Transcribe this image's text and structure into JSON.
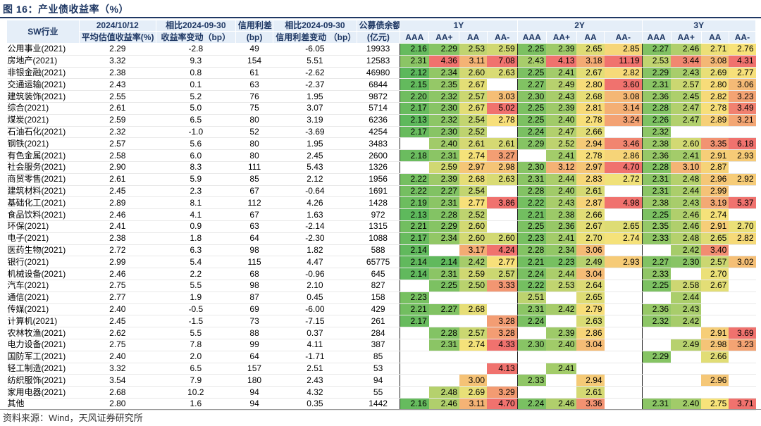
{
  "title": "图 16：产业债收益率（%）",
  "source": "资料来源：Wind，天风证券研究所",
  "colors": {
    "header_bg": "#e5eef8",
    "header_text": "#1f3864",
    "low": "#5cb85c",
    "mid": "#f7e37a",
    "high": "#f0726e"
  },
  "header": {
    "industry": "SW行业",
    "date": "2024/10/12",
    "avg_yield": "平均估值收益率(%)",
    "chg_label_top": "相比2024-09-30",
    "chg_label_bottom": "收益率变动（bp）",
    "spread_top": "信用利差",
    "spread_bottom": "(bp)",
    "spread_chg_top": "相比2024-09-30",
    "spread_chg_bottom": "信用利差变动 （bp）",
    "balance_top": "公募债余额",
    "balance_bottom": "(亿元)",
    "terms": [
      "1Y",
      "2Y",
      "3Y"
    ],
    "ratings": [
      "AAA",
      "AA+",
      "AA",
      "AA-"
    ]
  },
  "rows": [
    {
      "name": "公用事业(2021)",
      "yield": "2.29",
      "chg": "-2.8",
      "spread": "49",
      "spread_chg": "-6.05",
      "balance": "19933",
      "y1": [
        "2.16",
        "2.29",
        "2.53",
        "2.59"
      ],
      "y2": [
        "2.25",
        "2.39",
        "2.65",
        "2.85"
      ],
      "y3": [
        "2.27",
        "2.46",
        "2.71",
        "2.76"
      ]
    },
    {
      "name": "房地产(2021)",
      "yield": "3.32",
      "chg": "9.3",
      "spread": "154",
      "spread_chg": "5.51",
      "balance": "12583",
      "y1": [
        "2.31",
        "4.36",
        "3.11",
        "7.08"
      ],
      "y2": [
        "2.43",
        "4.13",
        "3.18",
        "11.19"
      ],
      "y3": [
        "2.53",
        "3.44",
        "3.08",
        "4.31"
      ]
    },
    {
      "name": "非银金融(2021)",
      "yield": "2.38",
      "chg": "0.8",
      "spread": "61",
      "spread_chg": "-2.62",
      "balance": "46980",
      "y1": [
        "2.12",
        "2.34",
        "2.60",
        "2.63"
      ],
      "y2": [
        "2.25",
        "2.41",
        "2.67",
        "2.82"
      ],
      "y3": [
        "2.29",
        "2.43",
        "2.69",
        "2.77"
      ]
    },
    {
      "name": "交通运输(2021)",
      "yield": "2.43",
      "chg": "0.1",
      "spread": "63",
      "spread_chg": "-2.37",
      "balance": "6844",
      "y1": [
        "2.15",
        "2.35",
        "2.67",
        ""
      ],
      "y2": [
        "2.27",
        "2.49",
        "2.80",
        "3.60"
      ],
      "y3": [
        "2.31",
        "2.57",
        "2.80",
        "3.06"
      ]
    },
    {
      "name": "建筑装饰(2021)",
      "yield": "2.55",
      "chg": "5.2",
      "spread": "76",
      "spread_chg": "1.95",
      "balance": "9872",
      "y1": [
        "2.20",
        "2.32",
        "2.57",
        "3.03"
      ],
      "y2": [
        "2.30",
        "2.43",
        "2.68",
        "3.08"
      ],
      "y3": [
        "2.36",
        "2.45",
        "2.82",
        "3.23"
      ]
    },
    {
      "name": "综合(2021)",
      "yield": "2.61",
      "chg": "5.0",
      "spread": "75",
      "spread_chg": "3.07",
      "balance": "5714",
      "y1": [
        "2.17",
        "2.30",
        "2.67",
        "5.02"
      ],
      "y2": [
        "2.25",
        "2.39",
        "2.81",
        "3.14"
      ],
      "y3": [
        "2.28",
        "2.47",
        "2.78",
        "3.49"
      ]
    },
    {
      "name": "煤炭(2021)",
      "yield": "2.59",
      "chg": "6.5",
      "spread": "80",
      "spread_chg": "3.19",
      "balance": "6236",
      "y1": [
        "2.13",
        "2.32",
        "2.54",
        "2.78"
      ],
      "y2": [
        "2.25",
        "2.40",
        "2.78",
        "3.24"
      ],
      "y3": [
        "2.26",
        "2.47",
        "2.89",
        "3.21"
      ]
    },
    {
      "name": "石油石化(2021)",
      "yield": "2.32",
      "chg": "-1.0",
      "spread": "52",
      "spread_chg": "-3.69",
      "balance": "4254",
      "y1": [
        "2.17",
        "2.30",
        "2.52",
        ""
      ],
      "y2": [
        "2.24",
        "2.47",
        "2.66",
        ""
      ],
      "y3": [
        "2.32",
        "",
        "",
        ""
      ]
    },
    {
      "name": "钢铁(2021)",
      "yield": "2.57",
      "chg": "5.6",
      "spread": "80",
      "spread_chg": "1.95",
      "balance": "3483",
      "y1": [
        "",
        "2.40",
        "2.61",
        "2.61"
      ],
      "y2": [
        "2.29",
        "2.52",
        "2.94",
        "3.46"
      ],
      "y3": [
        "2.38",
        "2.60",
        "3.35",
        "6.18"
      ]
    },
    {
      "name": "有色金属(2021)",
      "yield": "2.58",
      "chg": "6.0",
      "spread": "80",
      "spread_chg": "2.45",
      "balance": "2600",
      "y1": [
        "2.18",
        "2.31",
        "2.74",
        "3.27"
      ],
      "y2": [
        "",
        "2.41",
        "2.78",
        "2.86"
      ],
      "y3": [
        "2.36",
        "2.41",
        "2.91",
        "2.93"
      ]
    },
    {
      "name": "社会服务(2021)",
      "yield": "2.90",
      "chg": "8.3",
      "spread": "111",
      "spread_chg": "5.43",
      "balance": "1326",
      "y1": [
        "",
        "2.59",
        "2.97",
        "2.98"
      ],
      "y2": [
        "2.30",
        "3.12",
        "2.97",
        "4.70"
      ],
      "y3": [
        "2.28",
        "3.10",
        "2.87",
        ""
      ]
    },
    {
      "name": "商贸零售(2021)",
      "yield": "2.61",
      "chg": "5.9",
      "spread": "85",
      "spread_chg": "2.12",
      "balance": "1956",
      "y1": [
        "2.22",
        "2.39",
        "2.68",
        "2.63"
      ],
      "y2": [
        "2.31",
        "2.44",
        "2.83",
        "2.72"
      ],
      "y3": [
        "2.31",
        "2.48",
        "2.96",
        "2.92"
      ]
    },
    {
      "name": "建筑材料(2021)",
      "yield": "2.45",
      "chg": "2.3",
      "spread": "67",
      "spread_chg": "-0.64",
      "balance": "1691",
      "y1": [
        "2.22",
        "2.27",
        "2.54",
        ""
      ],
      "y2": [
        "2.28",
        "2.40",
        "2.61",
        ""
      ],
      "y3": [
        "2.31",
        "2.44",
        "2.99",
        ""
      ]
    },
    {
      "name": "基础化工(2021)",
      "yield": "2.89",
      "chg": "8.1",
      "spread": "112",
      "spread_chg": "4.26",
      "balance": "1428",
      "y1": [
        "2.19",
        "2.31",
        "2.77",
        "3.86"
      ],
      "y2": [
        "2.22",
        "2.43",
        "2.87",
        "4.98"
      ],
      "y3": [
        "2.38",
        "2.43",
        "3.19",
        "5.37"
      ]
    },
    {
      "name": "食品饮料(2021)",
      "yield": "2.46",
      "chg": "4.1",
      "spread": "67",
      "spread_chg": "1.63",
      "balance": "972",
      "y1": [
        "2.13",
        "2.28",
        "2.52",
        ""
      ],
      "y2": [
        "2.21",
        "2.38",
        "2.66",
        ""
      ],
      "y3": [
        "2.25",
        "2.46",
        "2.74",
        ""
      ]
    },
    {
      "name": "环保(2021)",
      "yield": "2.41",
      "chg": "0.9",
      "spread": "63",
      "spread_chg": "-2.14",
      "balance": "1315",
      "y1": [
        "2.21",
        "2.29",
        "2.60",
        ""
      ],
      "y2": [
        "2.25",
        "2.36",
        "2.67",
        "2.65"
      ],
      "y3": [
        "2.35",
        "2.46",
        "2.91",
        "2.70"
      ]
    },
    {
      "name": "电子(2021)",
      "yield": "2.38",
      "chg": "1.8",
      "spread": "64",
      "spread_chg": "-2.30",
      "balance": "1088",
      "y1": [
        "2.17",
        "2.34",
        "2.60",
        "2.60"
      ],
      "y2": [
        "2.23",
        "2.41",
        "2.70",
        "2.74"
      ],
      "y3": [
        "2.33",
        "2.48",
        "2.65",
        "2.82"
      ]
    },
    {
      "name": "医药生物(2021)",
      "yield": "2.72",
      "chg": "6.3",
      "spread": "98",
      "spread_chg": "1.82",
      "balance": "588",
      "y1": [
        "2.14",
        "",
        "3.17",
        "4.24"
      ],
      "y2": [
        "2.28",
        "2.34",
        "3.06",
        ""
      ],
      "y3": [
        "",
        "2.42",
        "3.40",
        ""
      ]
    },
    {
      "name": "银行(2021)",
      "yield": "2.99",
      "chg": "5.4",
      "spread": "115",
      "spread_chg": "4.47",
      "balance": "65775",
      "y1": [
        "2.14",
        "2.14",
        "2.42",
        "2.77"
      ],
      "y2": [
        "2.21",
        "2.23",
        "2.49",
        "2.93"
      ],
      "y3": [
        "2.27",
        "2.30",
        "2.57",
        "3.02"
      ]
    },
    {
      "name": "机械设备(2021)",
      "yield": "2.46",
      "chg": "2.2",
      "spread": "68",
      "spread_chg": "-0.96",
      "balance": "645",
      "y1": [
        "2.14",
        "2.31",
        "2.59",
        "2.57"
      ],
      "y2": [
        "2.24",
        "2.44",
        "3.04",
        ""
      ],
      "y3": [
        "2.33",
        "",
        "2.70",
        ""
      ]
    },
    {
      "name": "汽车(2021)",
      "yield": "2.75",
      "chg": "5.5",
      "spread": "98",
      "spread_chg": "2.10",
      "balance": "827",
      "y1": [
        "",
        "2.25",
        "2.50",
        "3.33"
      ],
      "y2": [
        "2.22",
        "2.53",
        "2.64",
        ""
      ],
      "y3": [
        "2.25",
        "2.58",
        "2.67",
        ""
      ]
    },
    {
      "name": "通信(2021)",
      "yield": "2.77",
      "chg": "1.9",
      "spread": "87",
      "spread_chg": "0.45",
      "balance": "158",
      "y1": [
        "2.23",
        "",
        "",
        ""
      ],
      "y2": [
        "2.51",
        "",
        "2.65",
        ""
      ],
      "y3": [
        "",
        "2.44",
        "",
        ""
      ]
    },
    {
      "name": "传媒(2021)",
      "yield": "2.40",
      "chg": "-0.5",
      "spread": "69",
      "spread_chg": "-6.00",
      "balance": "429",
      "y1": [
        "2.21",
        "2.27",
        "2.68",
        ""
      ],
      "y2": [
        "2.31",
        "2.42",
        "2.79",
        ""
      ],
      "y3": [
        "2.36",
        "2.43",
        "",
        ""
      ]
    },
    {
      "name": "计算机(2021)",
      "yield": "2.45",
      "chg": "-1.5",
      "spread": "73",
      "spread_chg": "-7.15",
      "balance": "261",
      "y1": [
        "2.17",
        "",
        "",
        "3.28"
      ],
      "y2": [
        "2.24",
        "",
        "2.63",
        ""
      ],
      "y3": [
        "2.32",
        "2.42",
        "",
        ""
      ]
    },
    {
      "name": "农林牧渔(2021)",
      "yield": "2.62",
      "chg": "5.5",
      "spread": "88",
      "spread_chg": "0.37",
      "balance": "284",
      "y1": [
        "",
        "2.28",
        "2.57",
        "3.28"
      ],
      "y2": [
        "",
        "2.39",
        "2.86",
        ""
      ],
      "y3": [
        "",
        "",
        "2.91",
        "3.69"
      ]
    },
    {
      "name": "电力设备(2021)",
      "yield": "2.75",
      "chg": "7.8",
      "spread": "99",
      "spread_chg": "4.11",
      "balance": "387",
      "y1": [
        "",
        "2.31",
        "2.74",
        "4.33"
      ],
      "y2": [
        "2.30",
        "2.40",
        "3.04",
        ""
      ],
      "y3": [
        "",
        "2.49",
        "2.98",
        "3.23"
      ]
    },
    {
      "name": "国防军工(2021)",
      "yield": "2.40",
      "chg": "2.0",
      "spread": "64",
      "spread_chg": "-1.71",
      "balance": "85",
      "y1": [
        "",
        "",
        "",
        ""
      ],
      "y2": [
        "",
        "",
        "",
        ""
      ],
      "y3": [
        "2.29",
        "",
        "2.66",
        ""
      ]
    },
    {
      "name": "轻工制造(2021)",
      "yield": "3.32",
      "chg": "6.5",
      "spread": "157",
      "spread_chg": "2.51",
      "balance": "53",
      "y1": [
        "",
        "",
        "",
        "4.13"
      ],
      "y2": [
        "",
        "2.41",
        "",
        ""
      ],
      "y3": [
        "",
        "",
        "",
        ""
      ]
    },
    {
      "name": "纺织服饰(2021)",
      "yield": "3.54",
      "chg": "7.9",
      "spread": "180",
      "spread_chg": "2.43",
      "balance": "94",
      "y1": [
        "",
        "",
        "3.00",
        ""
      ],
      "y2": [
        "2.33",
        "",
        "2.94",
        ""
      ],
      "y3": [
        "",
        "",
        "2.96",
        ""
      ]
    },
    {
      "name": "家用电器(2021)",
      "yield": "2.68",
      "chg": "10.2",
      "spread": "94",
      "spread_chg": "4.32",
      "balance": "55",
      "y1": [
        "",
        "2.48",
        "2.69",
        "3.29"
      ],
      "y2": [
        "",
        "",
        "2.61",
        ""
      ],
      "y3": [
        "",
        "",
        "",
        ""
      ]
    },
    {
      "name": "其他",
      "yield": "2.80",
      "chg": "1.6",
      "spread": "94",
      "spread_chg": "0.35",
      "balance": "1442",
      "y1": [
        "2.16",
        "2.46",
        "3.11",
        "4.70"
      ],
      "y2": [
        "2.24",
        "2.46",
        "3.36",
        ""
      ],
      "y3": [
        "2.31",
        "2.40",
        "2.75",
        "3.71"
      ]
    }
  ]
}
